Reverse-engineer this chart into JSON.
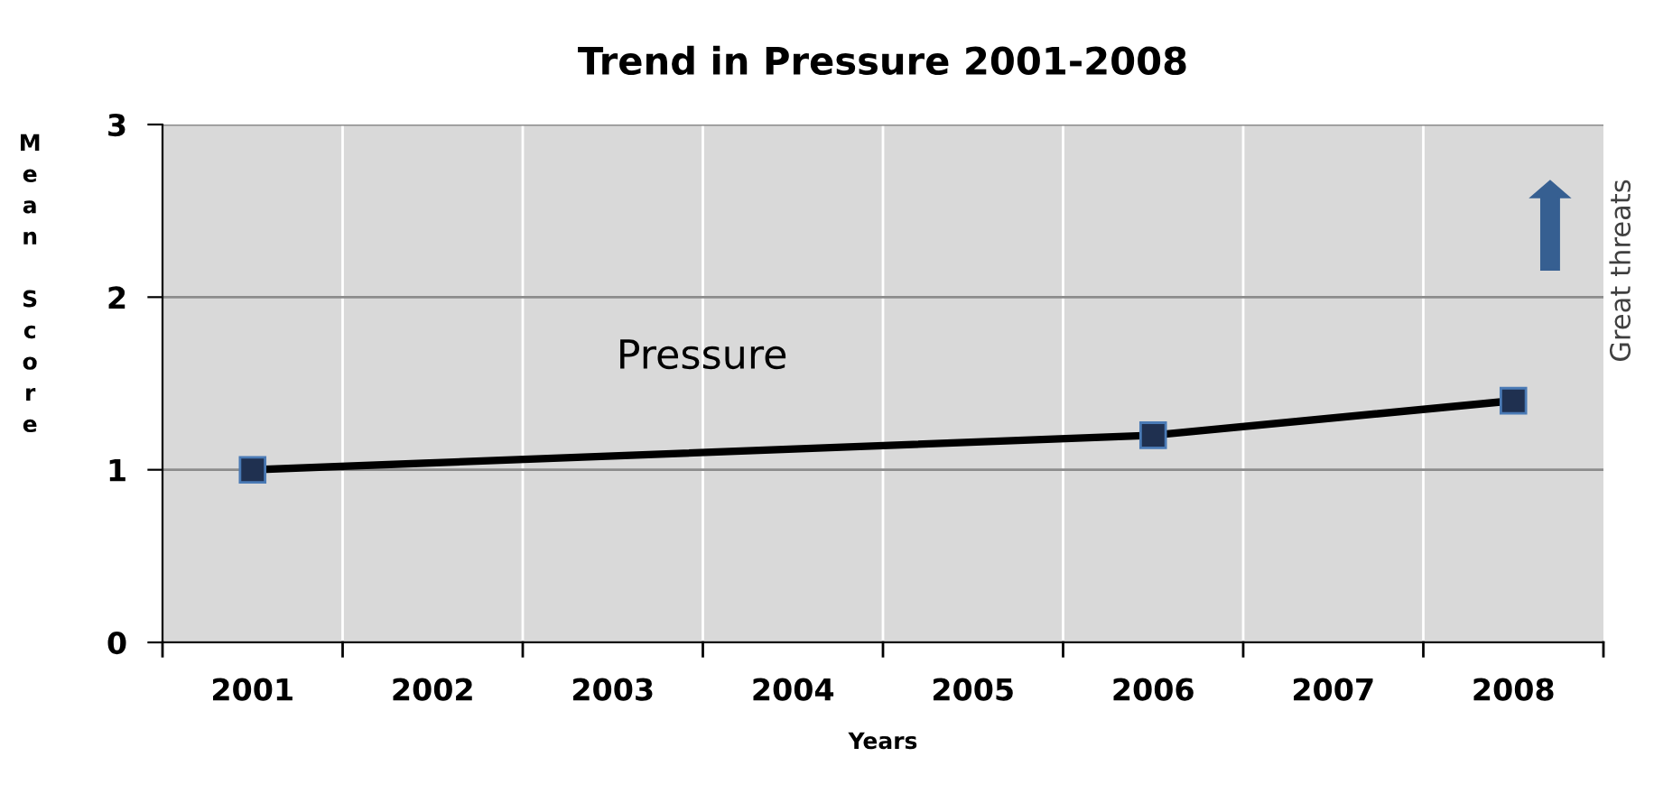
{
  "chart_data": {
    "type": "line",
    "title": "Trend in Pressure 2001-2008",
    "xlabel": "Years",
    "ylabel": "Mean Score",
    "categories": [
      "2001",
      "2002",
      "2003",
      "2004",
      "2005",
      "2006",
      "2007",
      "2008"
    ],
    "series": [
      {
        "name": "Pressure",
        "color": "#000000",
        "values": [
          1.0,
          null,
          null,
          null,
          null,
          1.2,
          null,
          1.4
        ]
      }
    ],
    "ylim": [
      0,
      3
    ],
    "yticks": [
      0,
      1,
      2,
      3
    ],
    "grid": true,
    "marker": "square",
    "line_style": "solid",
    "annotations": [
      "Great threats"
    ]
  }
}
